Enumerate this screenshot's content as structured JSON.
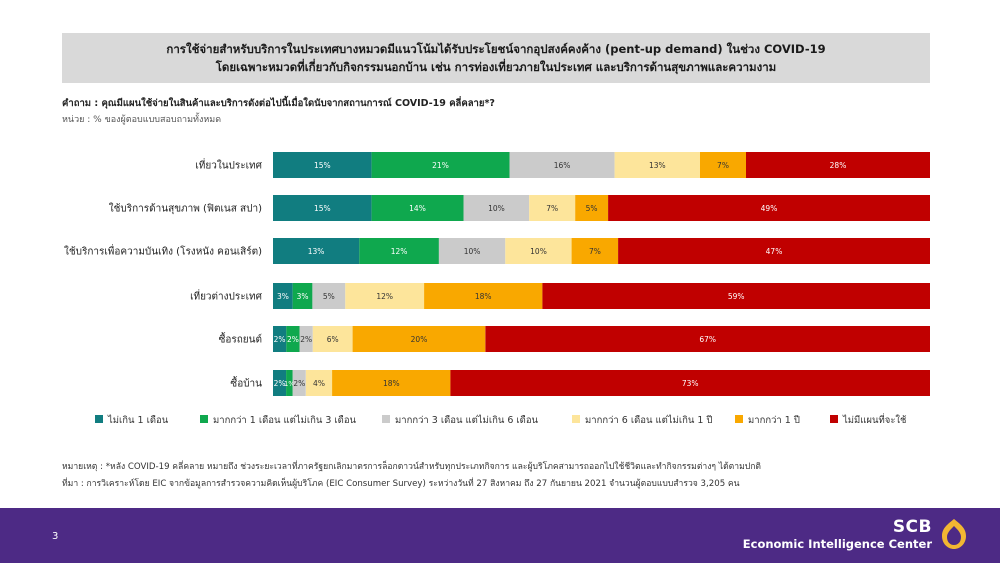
{
  "title": {
    "line1": "การใช้จ่ายสำหรับบริการในประเทศบางหมวดมีแนวโน้มได้รับประโยชน์จากอุปสงค์คงค้าง  (pent-up demand) ในช่วง COVID-19",
    "line2": "โดยเฉพาะหมวดที่เกี่ยวกับกิจกรรมนอกบ้าน  เช่น การท่องเที่ยวภายในประเทศ  และบริการด้านสุขภาพและความงาม"
  },
  "question": "คำถาม : คุณมีแผนใช้จ่ายในสินค้าและบริการดังต่อไปนี้เมื่อใดนับจากสถานการณ์ COVID-19 คลี่คลาย*?",
  "unit": "หน่วย : % ของผู้ตอบแบบสอบถามทั้งหมด",
  "chart_data": {
    "type": "bar",
    "orientation": "horizontal",
    "stacked": true,
    "xlim": [
      0,
      100
    ],
    "legend_position": "bottom",
    "categories": [
      "เที่ยวในประเทศ",
      "ใช้บริการด้านสุขภาพ (ฟิตเนส สปา)",
      "ใช้บริการเพื่อความบันเทิง (โรงหนัง คอนเสิร์ต)",
      "เที่ยวต่างประเทศ",
      "ซื้อรถยนต์",
      "ซื้อบ้าน"
    ],
    "series": [
      {
        "name": "ไม่เกิน 1 เดือน",
        "color": "#117d80",
        "values": [
          15,
          15,
          13,
          3,
          2,
          2
        ],
        "labels": [
          "15%",
          "15%",
          "13%",
          "3%",
          "2%",
          "2%"
        ]
      },
      {
        "name": "มากกว่า 1 เดือน แต่ไม่เกิน 3 เดือน",
        "color": "#0fa84e",
        "values": [
          21,
          14,
          12,
          3,
          2,
          1
        ],
        "labels": [
          "21%",
          "14%",
          "12%",
          "3%",
          "2%",
          "1%"
        ]
      },
      {
        "name": "มากกว่า 3 เดือน แต่ไม่เกิน 6 เดือน",
        "color": "#cbcbcb",
        "values": [
          16,
          10,
          10,
          5,
          2,
          2
        ],
        "labels": [
          "16%",
          "10%",
          "10%",
          "5%",
          "2%",
          "2%"
        ]
      },
      {
        "name": "มากกว่า 6 เดือน แต่ไม่เกิน 1 ปี",
        "color": "#fde59b",
        "values": [
          13,
          7,
          10,
          12,
          6,
          4
        ],
        "labels": [
          "13%",
          "7%",
          "10%",
          "12%",
          "6%",
          "4%"
        ]
      },
      {
        "name": "มากกว่า 1 ปี",
        "color": "#f9a800",
        "values": [
          7,
          5,
          7,
          18,
          20,
          18
        ],
        "labels": [
          "7%",
          "5%",
          "7%",
          "18%",
          "20%",
          "18%"
        ]
      },
      {
        "name": "ไม่มีแผนที่จะใช้",
        "color": "#c00000",
        "values": [
          28,
          49,
          47,
          59,
          67,
          73
        ],
        "labels": [
          "28%",
          "49%",
          "47%",
          "59%",
          "67%",
          "73%"
        ]
      }
    ]
  },
  "notes": {
    "note": "หมายเหตุ : *หลัง COVID-19 คลี่คลาย หมายถึง ช่วงระยะเวลาที่ภาครัฐยกเลิกมาตรการล็อกดาวน์สำหรับทุกประเภทกิจการ และผู้บริโภคสามารถออกไปใช้ชีวิตและทำกิจกรรมต่างๆ ได้ตามปกติ",
    "source": "ที่มา :  การวิเคราะห์โดย EIC จากข้อมูลการสำรวจความคิดเห็นผู้บริโภค (EIC Consumer Survey) ระหว่างวันที่ 27 สิงหาคม ถึง 27 กันยายน 2021 จำนวนผู้ตอบแบบสำรวจ 3,205 คน"
  },
  "footer": {
    "page_number": "3",
    "brand": "SCB",
    "subbrand": "Economic Intelligence Center",
    "logo_icon": "scb-lotus-logo-icon",
    "background": "#4d2a85",
    "logo_color": "#f2b632"
  }
}
